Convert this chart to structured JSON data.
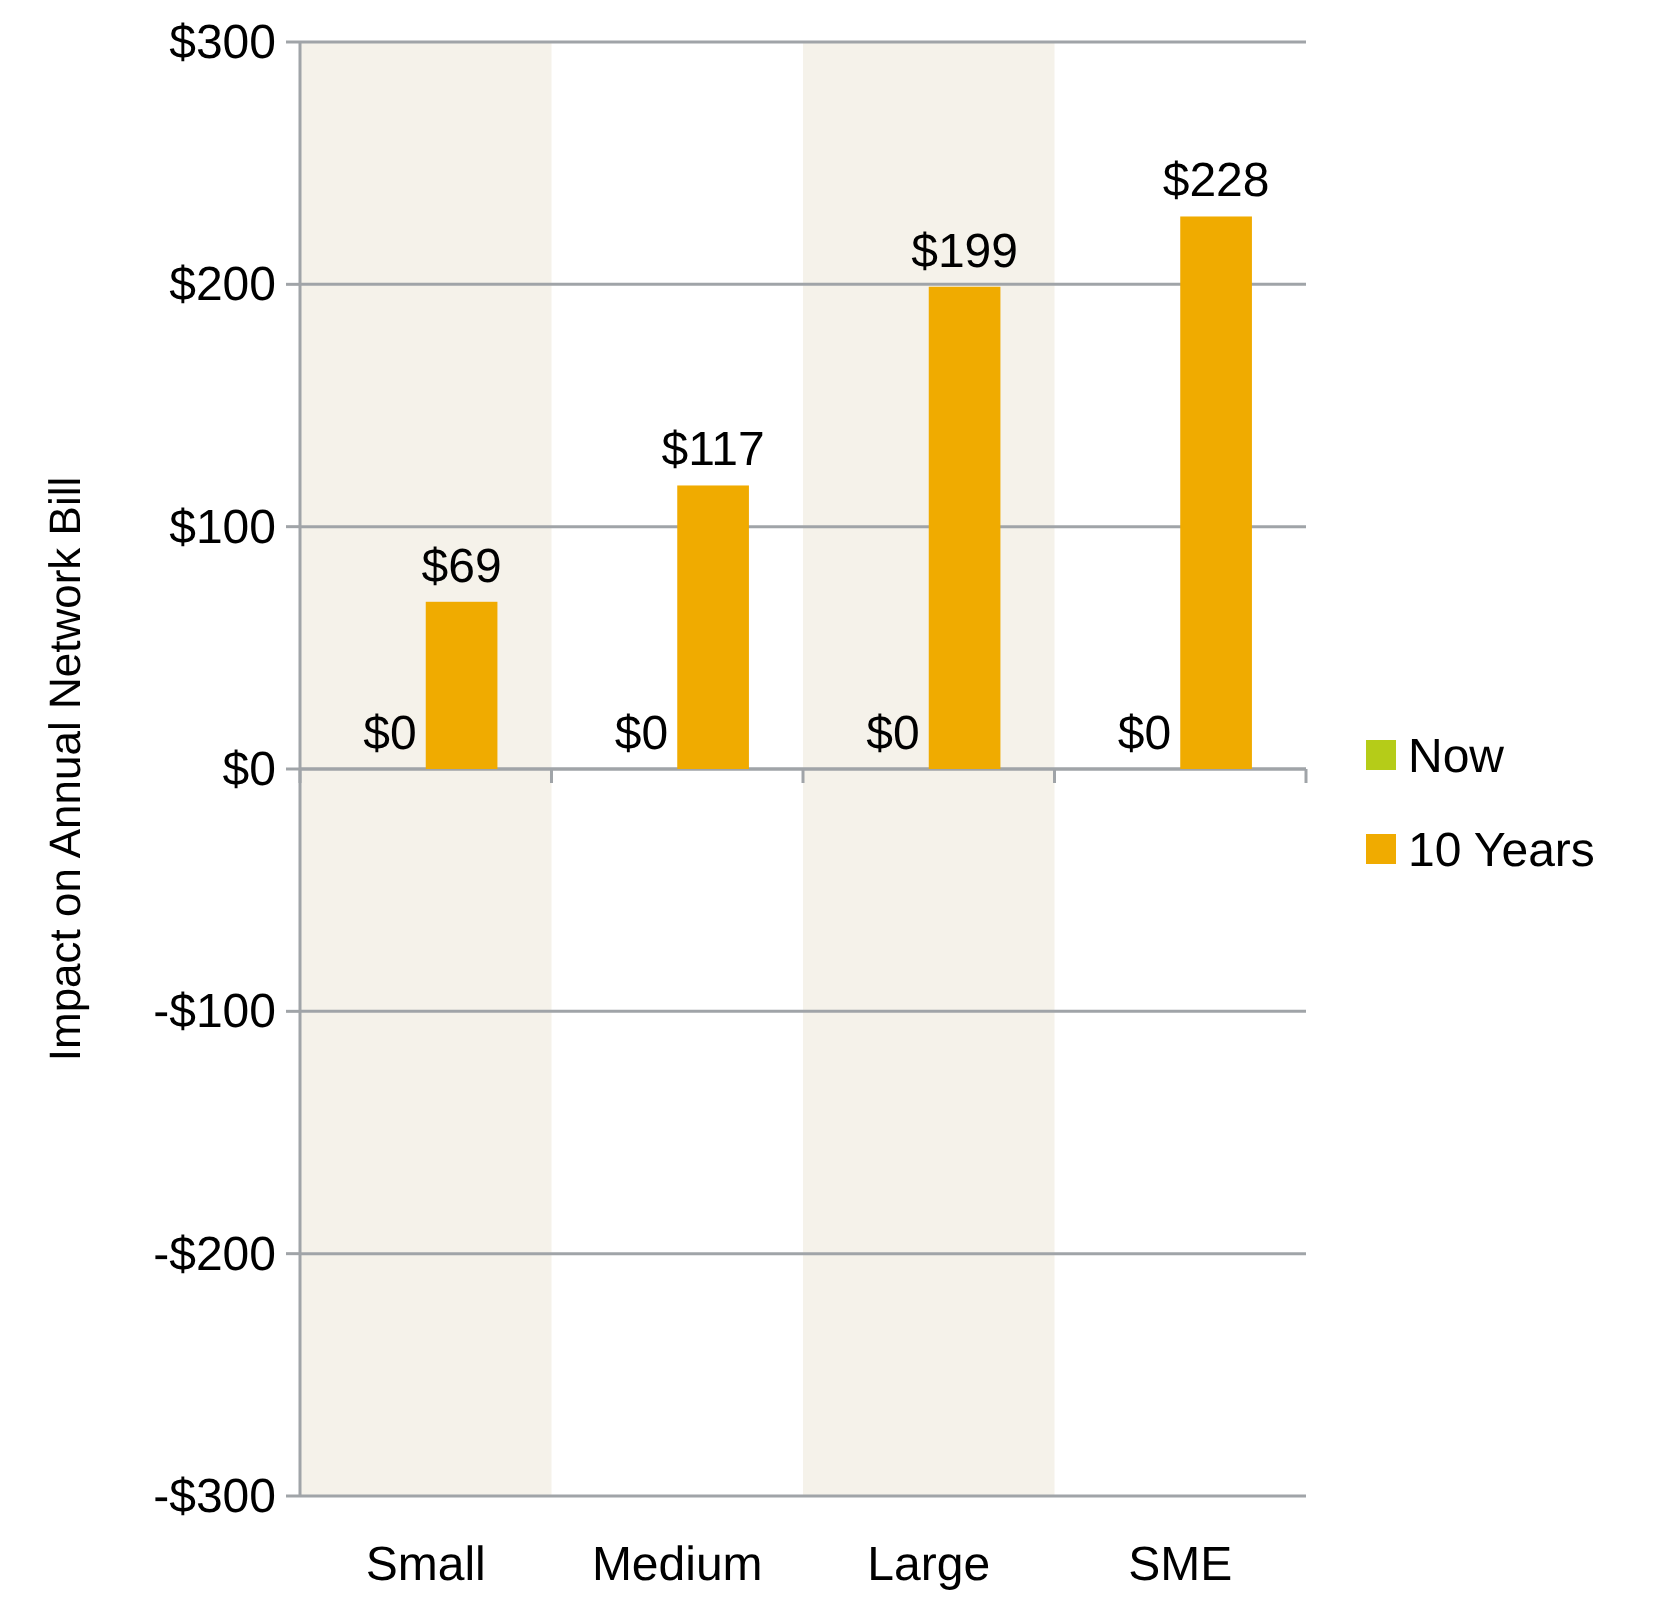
{
  "chart_data": {
    "type": "bar",
    "ylabel": "Impact on Annual Network Bill",
    "categories": [
      "Small",
      "Medium",
      "Large",
      "SME"
    ],
    "series": [
      {
        "name": "Now",
        "color": "#b5cc18",
        "values": [
          0,
          0,
          0,
          0
        ],
        "value_labels": [
          "$0",
          "$0",
          "$0",
          "$0"
        ]
      },
      {
        "name": "10 Years",
        "color": "#f0ab00",
        "values": [
          69,
          117,
          199,
          228
        ],
        "value_labels": [
          "$69",
          "$117",
          "$199",
          "$228"
        ]
      }
    ],
    "ylim": [
      -300,
      300
    ],
    "yticks": [
      {
        "value": -300,
        "label": "-$300"
      },
      {
        "value": -200,
        "label": "-$200"
      },
      {
        "value": -100,
        "label": "-$100"
      },
      {
        "value": 0,
        "label": "$0"
      },
      {
        "value": 100,
        "label": "$100"
      },
      {
        "value": 200,
        "label": "$200"
      },
      {
        "value": 300,
        "label": "$300"
      }
    ],
    "bands": [
      {
        "axis": "x",
        "from": "Small",
        "to": "Small",
        "color": "#f5f2ea"
      },
      {
        "axis": "x",
        "from": "Large",
        "to": "Large",
        "color": "#f5f2ea"
      }
    ],
    "grid": "y",
    "legend": "right"
  }
}
